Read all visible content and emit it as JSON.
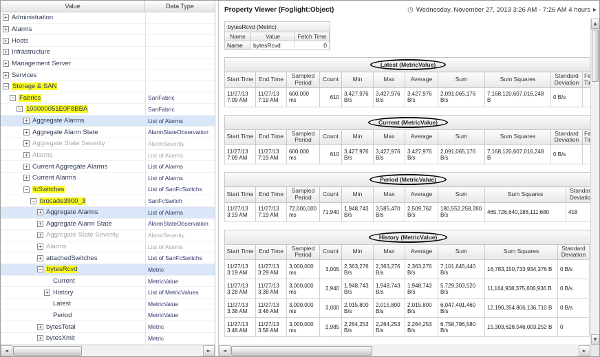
{
  "icons": {
    "clock": "◷",
    "forward": "▸",
    "scroll_left": "◄",
    "scroll_right": "►",
    "scroll_up": "▲",
    "scroll_down": "▼",
    "expand": "+",
    "collapse": "−"
  },
  "tree": {
    "columns": [
      "Value",
      "Data Type"
    ],
    "rows": [
      {
        "label": "Administration",
        "type": "",
        "level": 0,
        "icon": "plus"
      },
      {
        "label": "Alarms",
        "type": "",
        "level": 0,
        "icon": "plus"
      },
      {
        "label": "Hosts",
        "type": "",
        "level": 0,
        "icon": "plus"
      },
      {
        "label": "Infrastructure",
        "type": "",
        "level": 0,
        "icon": "plus"
      },
      {
        "label": "Management Server",
        "type": "",
        "level": 0,
        "icon": "plus"
      },
      {
        "label": "Services",
        "type": "",
        "level": 0,
        "icon": "plus"
      },
      {
        "label": "Storage & SAN",
        "type": "",
        "level": 0,
        "icon": "minus",
        "hl": true
      },
      {
        "label": "Fabrics",
        "type": "SanFabric",
        "level": 1,
        "icon": "minus",
        "hl": true
      },
      {
        "label": "100000051E0F8BBA",
        "type": "SanFabric",
        "level": 2,
        "icon": "minus",
        "hl": true
      },
      {
        "label": "Aggregate Alarms",
        "type": "List of Alarms",
        "level": 3,
        "icon": "plus",
        "sel": true
      },
      {
        "label": "Aggregate Alarm State",
        "type": "AlarmStateObservation",
        "level": 3,
        "icon": "plus"
      },
      {
        "label": "Aggregate State Severity",
        "type": "AlarmSeverity",
        "level": 3,
        "icon": "plus",
        "dim": true
      },
      {
        "label": "Alarms",
        "type": "List of Alarms",
        "level": 3,
        "icon": "plus",
        "dim": true
      },
      {
        "label": "Current Aggregate Alarms",
        "type": "List of Alarms",
        "level": 3,
        "icon": "plus"
      },
      {
        "label": "Current Alarms",
        "type": "List of Alarms",
        "level": 3,
        "icon": "plus"
      },
      {
        "label": "fcSwitches",
        "type": "List of SanFcSwitchs",
        "level": 3,
        "icon": "minus",
        "hl": true
      },
      {
        "label": "brocade3900_3",
        "type": "SanFcSwitch",
        "level": 4,
        "icon": "minus",
        "hl": true
      },
      {
        "label": "Aggregate Alarms",
        "type": "List of Alarms",
        "level": 5,
        "icon": "plus",
        "sel": true
      },
      {
        "label": "Aggregate Alarm State",
        "type": "AlarmStateObservation",
        "level": 5,
        "icon": "plus"
      },
      {
        "label": "Aggregate State Severity",
        "type": "AlarmSeverity",
        "level": 5,
        "icon": "plus",
        "dim": true
      },
      {
        "label": "Alarms",
        "type": "List of Alarms",
        "level": 5,
        "icon": "plus",
        "dim": true
      },
      {
        "label": "attachedSwitches",
        "type": "List of SanFcSwitchs",
        "level": 5,
        "icon": "plus"
      },
      {
        "label": "bytesRcvd",
        "type": "Metric",
        "level": 5,
        "icon": "minus",
        "hl": true,
        "sel": true
      },
      {
        "label": "Current",
        "type": "MetricValue",
        "level": 6,
        "icon": "none"
      },
      {
        "label": "History",
        "type": "List of MetricValues",
        "level": 6,
        "icon": "plus"
      },
      {
        "label": "Latest",
        "type": "MetricValue",
        "level": 6,
        "icon": "none"
      },
      {
        "label": "Period",
        "type": "MetricValue",
        "level": 6,
        "icon": "none"
      },
      {
        "label": "bytesTotal",
        "type": "Metric",
        "level": 5,
        "icon": "plus"
      },
      {
        "label": "bytesXmit",
        "type": "Metric",
        "level": 5,
        "icon": "plus"
      }
    ]
  },
  "right_panel": {
    "title": "Property Viewer (Foglight:Object)",
    "time_range": "Wednesday, November 27, 2013 3:26 AM - 7:26 AM 4 hours",
    "metric_table": {
      "title": "bytesRcvd (Metric)",
      "columns": [
        "Name",
        "Value",
        "Fetch Time"
      ],
      "row": {
        "name": "Name",
        "value": "bytesRcvd",
        "fetch_time": "0"
      }
    },
    "sections": [
      {
        "key": "latest",
        "title": "Latest (MetricValue)",
        "columns": [
          "Start Time",
          "End Time",
          "Sampled Period",
          "Count",
          "Min",
          "Max",
          "Average",
          "Sum",
          "Sum Squares",
          "Standard Deviation",
          "Fetch Time"
        ],
        "rows": [
          [
            "11/27/13 7:09 AM",
            "11/27/13 7:19 AM",
            "600,000 ms",
            "610",
            "3,427,976 B/s",
            "3,427,976 B/s",
            "3,427,976 B/s",
            "2,091,065,176 B/s",
            "7,168,120,607,016,248 B",
            "0 B/s",
            ""
          ]
        ]
      },
      {
        "key": "current",
        "title": "Current (MetricValue)",
        "columns": [
          "Start Time",
          "End Time",
          "Sampled Period",
          "Count",
          "Min",
          "Max",
          "Average",
          "Sum",
          "Sum Squares",
          "Standard Deviation",
          "Fetch Time"
        ],
        "rows": [
          [
            "11/27/13 7:09 AM",
            "11/27/13 7:19 AM",
            "600,000 ms",
            "610",
            "3,427,976 B/s",
            "3,427,976 B/s",
            "3,427,976 B/s",
            "2,091,065,176 B/s",
            "7,168,120,607,016,248 B",
            "0 B/s",
            ""
          ]
        ]
      },
      {
        "key": "period",
        "title": "Period (MetricValue)",
        "columns": [
          "Start Time",
          "End Time",
          "Sampled Period",
          "Count",
          "Min",
          "Max",
          "Average",
          "Sum",
          "Sum Squares",
          "Standard Deviation"
        ],
        "rows": [
          [
            "11/27/13 3:19 AM",
            "11/27/13 7:19 AM",
            "72,000,000 ms",
            "71,940",
            "1,948,743 B/s",
            "3,585,470 B/s",
            "2,509,762 B/s",
            "180,552,258,280 B/s",
            "465,726,640,188,111,680",
            "418"
          ]
        ]
      },
      {
        "key": "history",
        "title": "History (MetricValue)",
        "columns": [
          "Start Time",
          "End Time",
          "Sampled Period",
          "Count",
          "Min",
          "Max",
          "Average",
          "Sum",
          "Sum Squares",
          "Standard Deviation"
        ],
        "rows": [
          [
            "11/27/13 3:19 AM",
            "11/27/13 3:29 AM",
            "3,000,000 ms",
            "3,005",
            "2,363,276 B/s",
            "2,363,276 B/s",
            "2,363,276 B/s",
            "7,101,645,440 B/s",
            "16,783,150,733,934,376 B",
            "0 B/s"
          ],
          [
            "11/27/13 3:28 AM",
            "11/27/13 3:38 AM",
            "3,000,000 ms",
            "2,940",
            "1,948,743 B/s",
            "1,948,743 B/s",
            "1,948,743 B/s",
            "5,729,303,520 B/s",
            "11,164,938,375,606,936 B",
            "0 B/s"
          ],
          [
            "11/27/13 3:38 AM",
            "11/27/13 3:48 AM",
            "3,000,000 ms",
            "3,000",
            "2,015,800 B/s",
            "2,015,800 B/s",
            "2,015,800 B/s",
            "6,047,401,460 B/s",
            "12,190,354,806,136,710 B",
            "0 B/s"
          ],
          [
            "11/27/13 3:48 AM",
            "11/27/13 3:58 AM",
            "3,000,000 ms",
            "2,985",
            "2,264,253 B/s",
            "2,264,253 B/s",
            "2,264,253 B/s",
            "6,758,796,580 B/s",
            "15,303,628,546,003,252 B",
            "0"
          ]
        ]
      }
    ]
  }
}
